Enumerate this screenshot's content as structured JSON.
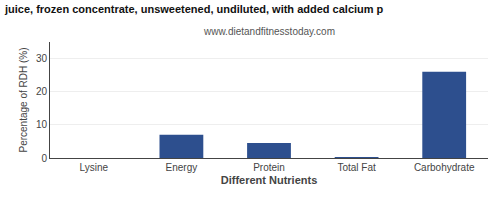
{
  "chart_data": {
    "type": "bar",
    "title": "juice, frozen concentrate, unsweetened, undiluted, with added calcium p",
    "subtitle": "www.dietandfitnesstoday.com",
    "xlabel": "Different Nutrients",
    "ylabel": "Percentage of RDH (%)",
    "categories": [
      "Lysine",
      "Energy",
      "Protein",
      "Total Fat",
      "Carbohydrate"
    ],
    "values": [
      0.0,
      7.0,
      4.5,
      0.3,
      26.0
    ],
    "color": "#2d4f8e",
    "ylim": [
      0,
      35
    ],
    "yticks": [
      0,
      10,
      20,
      30
    ],
    "grid": true
  }
}
